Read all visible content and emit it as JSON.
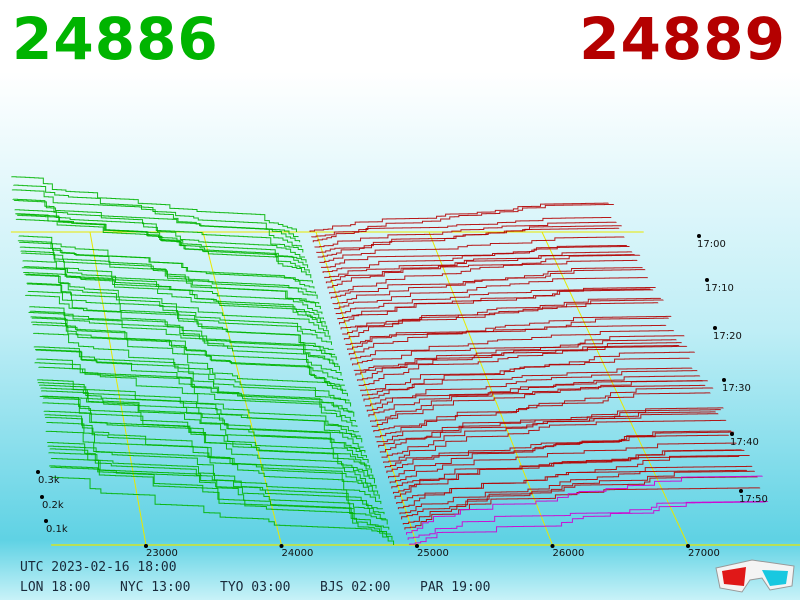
{
  "header": {
    "bid_price": "24886",
    "ask_price": "24889",
    "bid_color": "#00b400",
    "ask_color": "#b40000"
  },
  "footer": {
    "utc": "UTC 2023-02-16 18:00",
    "zones": [
      {
        "label": "LON 18:00"
      },
      {
        "label": "NYC 13:00"
      },
      {
        "label": "TYO 03:00"
      },
      {
        "label": "BJS 02:00"
      },
      {
        "label": "PAR 19:00"
      }
    ]
  },
  "icons": {
    "glasses": "3d-glasses-icon"
  },
  "chart_data": {
    "type": "area",
    "view": "3d-depth-history",
    "x_ticks": [
      23000,
      24000,
      25000,
      26000,
      27000
    ],
    "x_tick_labels": [
      "23000",
      "24000",
      "25000",
      "26000",
      "27000"
    ],
    "x_range": [
      22300,
      27900
    ],
    "time_ticks": [
      "17:00",
      "17:10",
      "17:20",
      "17:30",
      "17:40",
      "17:50"
    ],
    "volume_ticks": [
      "0.1k",
      "0.2k",
      "0.3k"
    ],
    "mid_price": 24887,
    "bid_color": "#00b400",
    "ask_color": "#b40000",
    "latest_ask_color": "#d000d0",
    "grid_color": "#e8e800",
    "snapshots": 62
  }
}
